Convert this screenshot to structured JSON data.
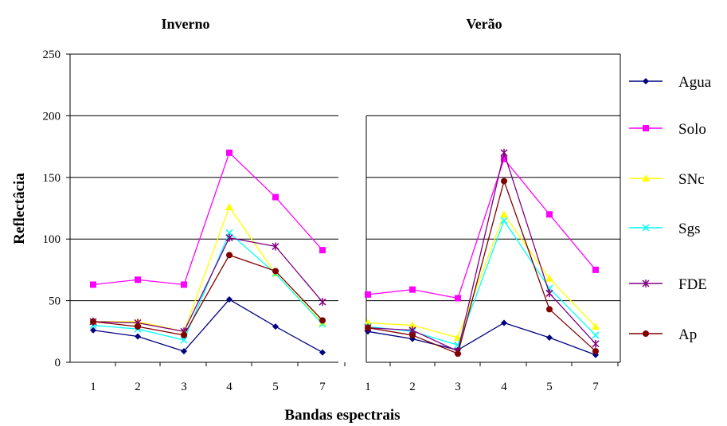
{
  "chart_data": {
    "type": "line",
    "xlabel": "Bandas espectrais",
    "ylabel": "Reflectâcia",
    "ylim": [
      0,
      250
    ],
    "yticks": [
      0,
      50,
      100,
      150,
      200,
      250
    ],
    "categories": [
      "1",
      "2",
      "3",
      "4",
      "5",
      "7"
    ],
    "grid": "horizontal",
    "legend_position": "right",
    "panels": [
      {
        "title": "Inverno",
        "series": [
          {
            "name": "Agua",
            "values": [
              26,
              21,
              9,
              51,
              29,
              8
            ]
          },
          {
            "name": "Solo",
            "values": [
              63,
              67,
              63,
              170,
              134,
              91
            ]
          },
          {
            "name": "SNc",
            "values": [
              33,
              33,
              25,
              126,
              72,
              32
            ]
          },
          {
            "name": "Sgs",
            "values": [
              30,
              27,
              18,
              105,
              72,
              31
            ]
          },
          {
            "name": "FDE",
            "values": [
              33,
              32,
              25,
              101,
              94,
              49
            ]
          },
          {
            "name": "Ap",
            "values": [
              33,
              29,
              22,
              87,
              74,
              34
            ]
          }
        ]
      },
      {
        "title": "Verão",
        "series": [
          {
            "name": "Agua",
            "values": [
              25,
              19,
              10,
              32,
              20,
              6
            ]
          },
          {
            "name": "Solo",
            "values": [
              55,
              59,
              52,
              165,
              120,
              75
            ]
          },
          {
            "name": "SNc",
            "values": [
              32,
              30,
              20,
              120,
              68,
              29
            ]
          },
          {
            "name": "Sgs",
            "values": [
              29,
              25,
              14,
              115,
              60,
              22
            ]
          },
          {
            "name": "FDE",
            "values": [
              28,
              26,
              9,
              170,
              56,
              15
            ]
          },
          {
            "name": "Ap",
            "values": [
              28,
              22,
              7,
              147,
              43,
              9
            ]
          }
        ]
      }
    ],
    "series_styles": [
      {
        "name": "Agua",
        "color": "#000080",
        "marker": "diamond"
      },
      {
        "name": "Solo",
        "color": "#ff00ff",
        "marker": "square"
      },
      {
        "name": "SNc",
        "color": "#ffff00",
        "marker": "triangle"
      },
      {
        "name": "Sgs",
        "color": "#00ffff",
        "marker": "x"
      },
      {
        "name": "FDE",
        "color": "#800080",
        "marker": "star"
      },
      {
        "name": "Ap",
        "color": "#800000",
        "marker": "circle"
      }
    ]
  }
}
